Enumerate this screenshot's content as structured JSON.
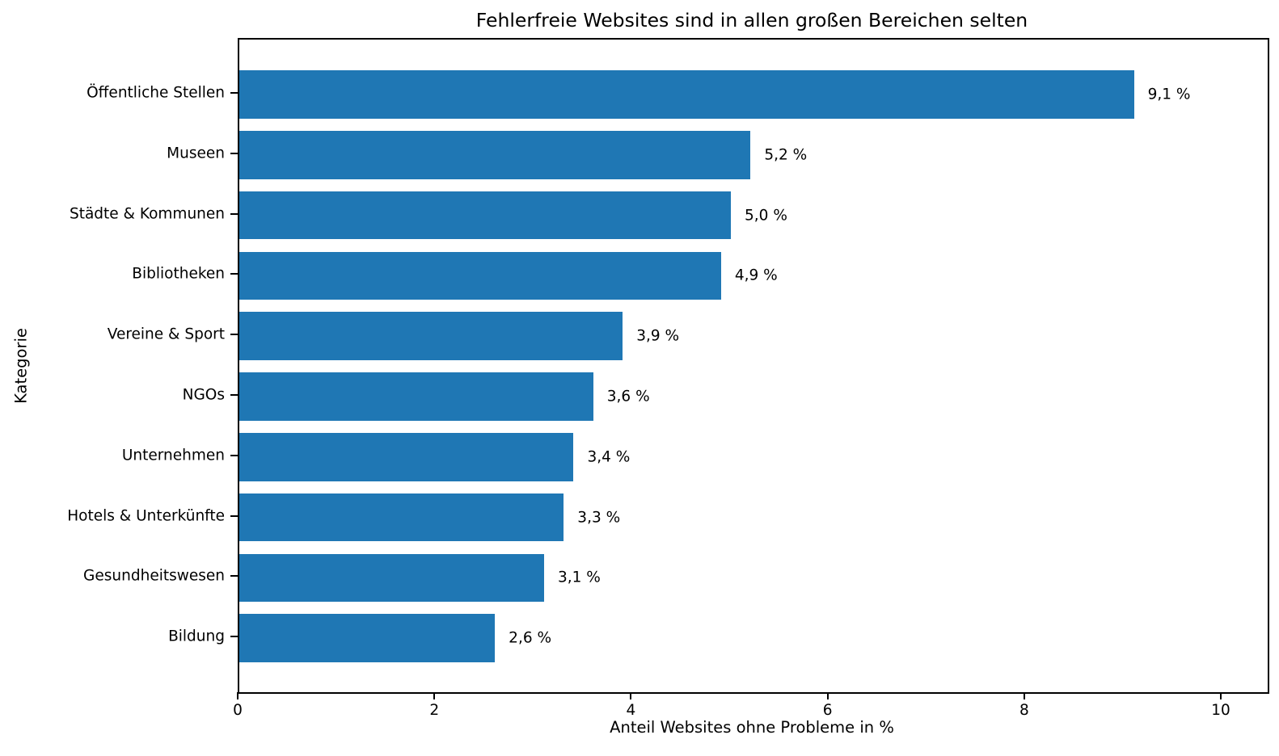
{
  "chart_data": {
    "type": "bar",
    "orientation": "horizontal",
    "title": "Fehlerfreie Websites sind in allen großen Bereichen selten",
    "xlabel": "Anteil Websites ohne Probleme in %",
    "ylabel": "Kategorie",
    "categories": [
      "Öffentliche Stellen",
      "Museen",
      "Städte & Kommunen",
      "Bibliotheken",
      "Vereine & Sport",
      "NGOs",
      "Unternehmen",
      "Hotels & Unterkünfte",
      "Gesundheitswesen",
      "Bildung"
    ],
    "values": [
      9.1,
      5.2,
      5.0,
      4.9,
      3.9,
      3.6,
      3.4,
      3.3,
      3.1,
      2.6
    ],
    "value_labels": [
      "9,1 %",
      "5,2 %",
      "5,0 %",
      "4,9 %",
      "3,9 %",
      "3,6 %",
      "3,4 %",
      "3,3 %",
      "3,1 %",
      "2,6 %"
    ],
    "xticks": [
      0,
      2,
      4,
      6,
      8,
      10
    ],
    "xtick_labels": [
      "0",
      "2",
      "4",
      "6",
      "8",
      "10"
    ],
    "xlim": [
      0,
      10.46
    ],
    "grid": false,
    "legend": null,
    "bar_color": "#1f77b4",
    "spine_color": "#000000",
    "text_color": "#000000"
  }
}
